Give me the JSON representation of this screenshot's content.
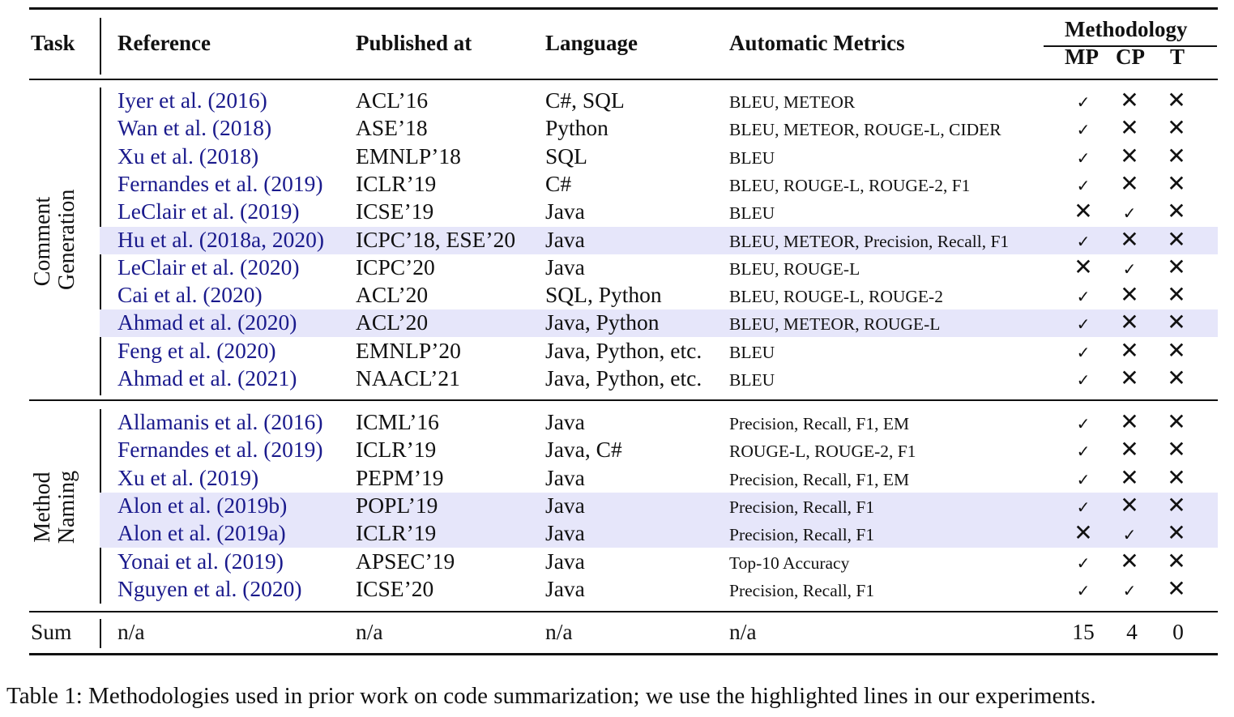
{
  "header": {
    "task": "Task",
    "reference": "Reference",
    "published": "Published at",
    "language": "Language",
    "metrics": "Automatic Metrics",
    "methodology": "Methodology",
    "mp": "MP",
    "cp": "CP",
    "t": "T"
  },
  "groups": [
    {
      "name": "Comment Generation",
      "line1": "Comment",
      "line2": "Generation",
      "rows": [
        {
          "ref": "Iyer et al. (2016)",
          "pub": "ACL’16",
          "lang": "C#, SQL",
          "metrics": "BLEU, METEOR",
          "mp": "✓",
          "cp": "✕",
          "t": "✕",
          "highlight": false
        },
        {
          "ref": "Wan et al. (2018)",
          "pub": "ASE’18",
          "lang": "Python",
          "metrics": "BLEU, METEOR, ROUGE-L, CIDER",
          "mp": "✓",
          "cp": "✕",
          "t": "✕",
          "highlight": false
        },
        {
          "ref": "Xu et al. (2018)",
          "pub": "EMNLP’18",
          "lang": "SQL",
          "metrics": "BLEU",
          "mp": "✓",
          "cp": "✕",
          "t": "✕",
          "highlight": false
        },
        {
          "ref": "Fernandes et al. (2019)",
          "pub": "ICLR’19",
          "lang": "C#",
          "metrics": "BLEU, ROUGE-L, ROUGE-2, F1",
          "mp": "✓",
          "cp": "✕",
          "t": "✕",
          "highlight": false
        },
        {
          "ref": "LeClair et al. (2019)",
          "pub": "ICSE’19",
          "lang": "Java",
          "metrics": "BLEU",
          "mp": "✕",
          "cp": "✓",
          "t": "✕",
          "highlight": false
        },
        {
          "ref": "Hu et al. (2018a, 2020)",
          "pub": "ICPC’18, ESE’20",
          "lang": "Java",
          "metrics": "BLEU, METEOR, Precision, Recall, F1",
          "mp": "✓",
          "cp": "✕",
          "t": "✕",
          "highlight": true
        },
        {
          "ref": "LeClair et al. (2020)",
          "pub": "ICPC’20",
          "lang": "Java",
          "metrics": "BLEU, ROUGE-L",
          "mp": "✕",
          "cp": "✓",
          "t": "✕",
          "highlight": false
        },
        {
          "ref": "Cai et al. (2020)",
          "pub": "ACL’20",
          "lang": "SQL, Python",
          "metrics": "BLEU, ROUGE-L, ROUGE-2",
          "mp": "✓",
          "cp": "✕",
          "t": "✕",
          "highlight": false
        },
        {
          "ref": "Ahmad et al. (2020)",
          "pub": "ACL’20",
          "lang": "Java, Python",
          "metrics": "BLEU, METEOR, ROUGE-L",
          "mp": "✓",
          "cp": "✕",
          "t": "✕",
          "highlight": true
        },
        {
          "ref": "Feng et al. (2020)",
          "pub": "EMNLP’20",
          "lang": "Java, Python, etc.",
          "metrics": "BLEU",
          "mp": "✓",
          "cp": "✕",
          "t": "✕",
          "highlight": false
        },
        {
          "ref": "Ahmad et al. (2021)",
          "pub": "NAACL’21",
          "lang": "Java, Python, etc.",
          "metrics": "BLEU",
          "mp": "✓",
          "cp": "✕",
          "t": "✕",
          "highlight": false
        }
      ]
    },
    {
      "name": "Method Naming",
      "line1": "Method",
      "line2": "Naming",
      "rows": [
        {
          "ref": "Allamanis et al. (2016)",
          "pub": "ICML’16",
          "lang": "Java",
          "metrics": "Precision, Recall, F1, EM",
          "mp": "✓",
          "cp": "✕",
          "t": "✕",
          "highlight": false
        },
        {
          "ref": "Fernandes et al. (2019)",
          "pub": "ICLR’19",
          "lang": "Java, C#",
          "metrics": "ROUGE-L, ROUGE-2, F1",
          "mp": "✓",
          "cp": "✕",
          "t": "✕",
          "highlight": false
        },
        {
          "ref": "Xu et al. (2019)",
          "pub": "PEPM’19",
          "lang": "Java",
          "metrics": "Precision, Recall, F1, EM",
          "mp": "✓",
          "cp": "✕",
          "t": "✕",
          "highlight": false
        },
        {
          "ref": "Alon et al. (2019b)",
          "pub": "POPL’19",
          "lang": "Java",
          "metrics": "Precision, Recall, F1",
          "mp": "✓",
          "cp": "✕",
          "t": "✕",
          "highlight": true
        },
        {
          "ref": "Alon et al. (2019a)",
          "pub": "ICLR’19",
          "lang": "Java",
          "metrics": "Precision, Recall, F1",
          "mp": "✕",
          "cp": "✓",
          "t": "✕",
          "highlight": true
        },
        {
          "ref": "Yonai et al. (2019)",
          "pub": "APSEC’19",
          "lang": "Java",
          "metrics": "Top-10 Accuracy",
          "mp": "✓",
          "cp": "✕",
          "t": "✕",
          "highlight": false
        },
        {
          "ref": "Nguyen et al. (2020)",
          "pub": "ICSE’20",
          "lang": "Java",
          "metrics": "Precision, Recall, F1",
          "mp": "✓",
          "cp": "✓",
          "t": "✕",
          "highlight": false
        }
      ]
    }
  ],
  "sum": {
    "label": "Sum",
    "ref": "n/a",
    "pub": "n/a",
    "lang": "n/a",
    "metrics": "n/a",
    "mp": "15",
    "cp": "4",
    "t": "0"
  },
  "caption": "Table 1: Methodologies used in prior work on code summarization; we use the highlighted lines in our experiments."
}
